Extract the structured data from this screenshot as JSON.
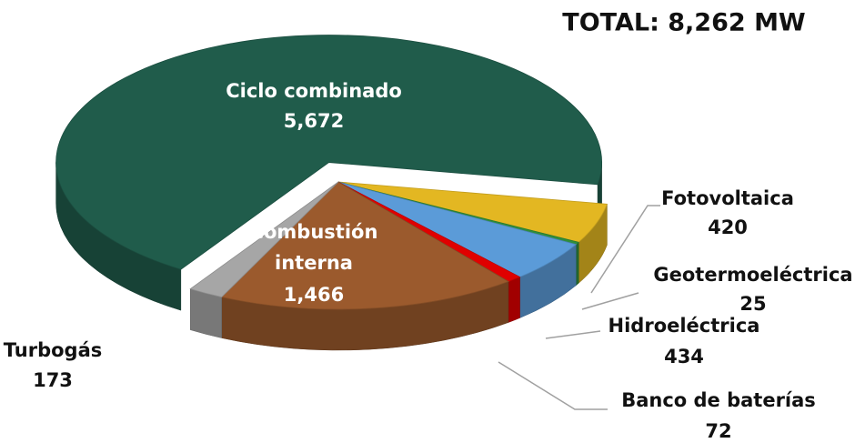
{
  "chart_data": {
    "type": "pie",
    "title": "TOTAL: 8,262 MW",
    "categories": [
      "Ciclo combinado",
      "Fotovoltaica",
      "Geotermoeléctrica",
      "Hidroeléctrica",
      "Banco de baterías",
      "Combustión interna",
      "Turbogás"
    ],
    "values": [
      5672,
      420,
      25,
      434,
      72,
      1466,
      173
    ],
    "value_labels": [
      "5,672",
      "420",
      "25",
      "434",
      "72",
      "1,466",
      "173"
    ],
    "colors": [
      "#205c4b",
      "#e3b722",
      "#2f8f3c",
      "#5b9bd8",
      "#e00000",
      "#9b5a2d",
      "#a6a6a6"
    ]
  }
}
